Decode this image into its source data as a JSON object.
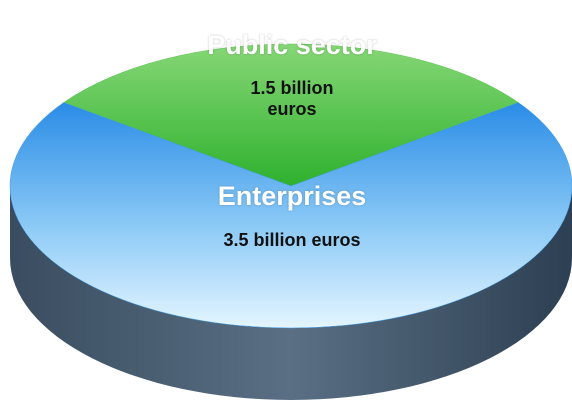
{
  "chart_data": {
    "type": "pie",
    "categories": [
      "Public sector",
      "Enterprises"
    ],
    "values": [
      1.5,
      3.5
    ],
    "value_labels": [
      "1.5 billion euros",
      "3.5 billion euros"
    ],
    "colors": [
      "#5cc24f",
      "#3a9be8"
    ]
  }
}
